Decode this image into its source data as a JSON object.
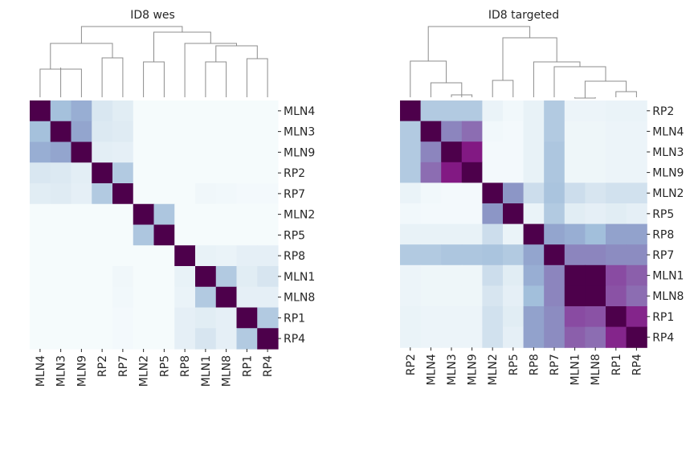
{
  "figure": {
    "background": "#ffffff"
  },
  "chart_data": [
    {
      "type": "heatmap",
      "title": "ID8 wes",
      "labels": [
        "MLN4",
        "MLN3",
        "MLN9",
        "RP2",
        "RP7",
        "MLN2",
        "RP5",
        "RP8",
        "MLN1",
        "MLN8",
        "RP1",
        "RP4"
      ],
      "colormap": "BuPu",
      "vmin": 0,
      "vmax": 1,
      "has_dendrogram": true,
      "values": [
        [
          1.0,
          0.35,
          0.42,
          0.15,
          0.12,
          0.01,
          0.01,
          0.01,
          0.01,
          0.01,
          0.01,
          0.01
        ],
        [
          0.35,
          1.0,
          0.45,
          0.14,
          0.13,
          0.01,
          0.01,
          0.01,
          0.01,
          0.01,
          0.01,
          0.01
        ],
        [
          0.42,
          0.45,
          1.0,
          0.11,
          0.1,
          0.01,
          0.01,
          0.01,
          0.01,
          0.01,
          0.01,
          0.01
        ],
        [
          0.15,
          0.14,
          0.11,
          1.0,
          0.3,
          0.01,
          0.01,
          0.01,
          0.01,
          0.01,
          0.01,
          0.01
        ],
        [
          0.12,
          0.13,
          0.1,
          0.3,
          1.0,
          0.01,
          0.01,
          0.01,
          0.04,
          0.03,
          0.02,
          0.02
        ],
        [
          0.01,
          0.01,
          0.01,
          0.01,
          0.01,
          1.0,
          0.32,
          0.01,
          0.01,
          0.01,
          0.01,
          0.01
        ],
        [
          0.01,
          0.01,
          0.01,
          0.01,
          0.01,
          0.32,
          1.0,
          0.01,
          0.01,
          0.01,
          0.01,
          0.01
        ],
        [
          0.01,
          0.01,
          0.01,
          0.01,
          0.01,
          0.01,
          0.01,
          1.0,
          0.08,
          0.07,
          0.1,
          0.1
        ],
        [
          0.01,
          0.01,
          0.01,
          0.01,
          0.04,
          0.01,
          0.01,
          0.08,
          1.0,
          0.3,
          0.12,
          0.16
        ],
        [
          0.01,
          0.01,
          0.01,
          0.01,
          0.03,
          0.01,
          0.01,
          0.07,
          0.3,
          1.0,
          0.1,
          0.1
        ],
        [
          0.01,
          0.01,
          0.01,
          0.01,
          0.02,
          0.01,
          0.01,
          0.1,
          0.12,
          0.1,
          1.0,
          0.3
        ],
        [
          0.01,
          0.01,
          0.01,
          0.01,
          0.02,
          0.01,
          0.01,
          0.1,
          0.16,
          0.1,
          0.3,
          1.0
        ]
      ]
    },
    {
      "type": "heatmap",
      "title": "ID8 targeted",
      "labels": [
        "RP2",
        "MLN4",
        "MLN3",
        "MLN9",
        "MLN2",
        "RP5",
        "RP8",
        "RP7",
        "MLN1",
        "MLN8",
        "RP1",
        "RP4"
      ],
      "colormap": "BuPu",
      "vmin": 0,
      "vmax": 1,
      "has_dendrogram": true,
      "values": [
        [
          1.0,
          0.3,
          0.3,
          0.3,
          0.07,
          0.03,
          0.08,
          0.3,
          0.06,
          0.06,
          0.07,
          0.07
        ],
        [
          0.3,
          1.0,
          0.55,
          0.62,
          0.03,
          0.02,
          0.08,
          0.3,
          0.05,
          0.05,
          0.06,
          0.06
        ],
        [
          0.3,
          0.55,
          1.0,
          0.85,
          0.02,
          0.02,
          0.08,
          0.32,
          0.05,
          0.05,
          0.06,
          0.06
        ],
        [
          0.3,
          0.62,
          0.85,
          1.0,
          0.02,
          0.02,
          0.08,
          0.32,
          0.05,
          0.05,
          0.06,
          0.06
        ],
        [
          0.07,
          0.03,
          0.02,
          0.02,
          1.0,
          0.5,
          0.2,
          0.33,
          0.2,
          0.16,
          0.18,
          0.18
        ],
        [
          0.03,
          0.02,
          0.02,
          0.02,
          0.5,
          1.0,
          0.07,
          0.3,
          0.12,
          0.1,
          0.12,
          0.1
        ],
        [
          0.08,
          0.08,
          0.08,
          0.08,
          0.2,
          0.07,
          1.0,
          0.45,
          0.42,
          0.36,
          0.46,
          0.46
        ],
        [
          0.3,
          0.3,
          0.32,
          0.32,
          0.33,
          0.3,
          0.45,
          1.0,
          0.55,
          0.55,
          0.53,
          0.53
        ],
        [
          0.06,
          0.05,
          0.05,
          0.05,
          0.2,
          0.12,
          0.42,
          0.55,
          1.0,
          1.0,
          0.72,
          0.66
        ],
        [
          0.06,
          0.05,
          0.05,
          0.05,
          0.16,
          0.1,
          0.36,
          0.55,
          1.0,
          1.0,
          0.7,
          0.62
        ],
        [
          0.07,
          0.06,
          0.06,
          0.06,
          0.18,
          0.12,
          0.46,
          0.53,
          0.72,
          0.7,
          1.0,
          0.82
        ],
        [
          0.07,
          0.06,
          0.06,
          0.06,
          0.18,
          0.1,
          0.46,
          0.53,
          0.66,
          0.62,
          0.82,
          1.0
        ]
      ]
    }
  ]
}
